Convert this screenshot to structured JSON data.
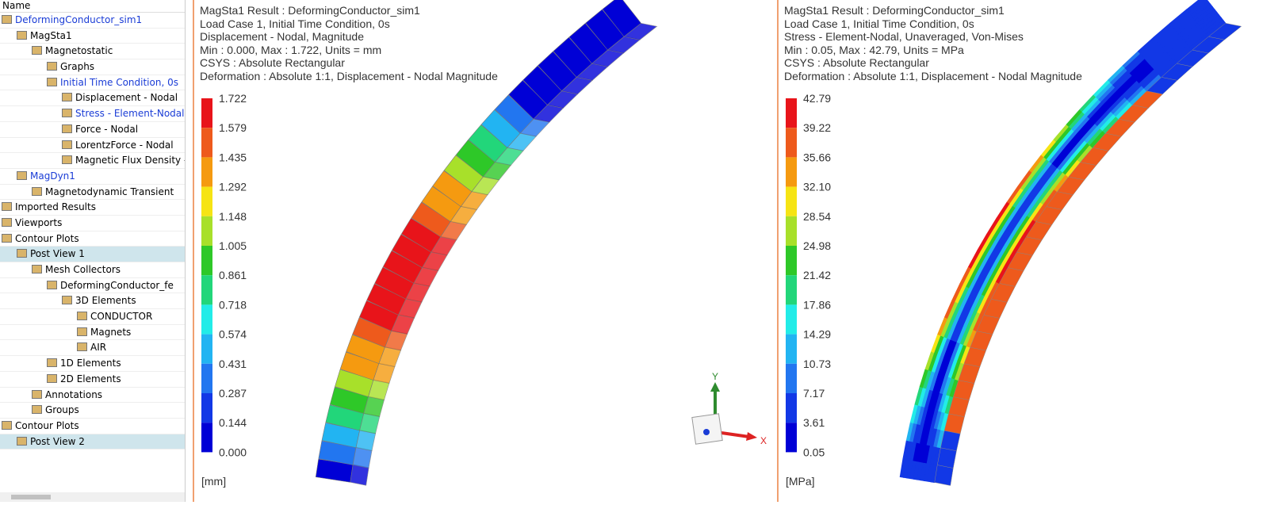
{
  "tree": {
    "header": "Name",
    "items": [
      "DeformingConductor_sim1",
      "MagSta1",
      "Magnetostatic",
      "Graphs",
      "Initial Time Condition, 0s",
      "Displacement - Nodal",
      "Stress - Element-Nodal",
      "Force - Nodal",
      "LorentzForce - Nodal",
      "Magnetic Flux Density - Ele",
      "MagDyn1",
      "Magnetodynamic Transient",
      "Imported Results",
      "Viewports",
      "Contour Plots",
      "Post View 1",
      "Mesh Collectors",
      "DeformingConductor_fe",
      "3D Elements",
      "CONDUCTOR",
      "Magnets",
      "AIR",
      "1D Elements",
      "2D Elements",
      "Annotations",
      "Groups",
      "Contour Plots",
      "Post View 2"
    ]
  },
  "views": [
    {
      "info": [
        "MagSta1 Result : DeformingConductor_sim1",
        "Load Case 1, Initial Time Condition, 0s",
        "Displacement - Nodal, Magnitude",
        "Min : 0.000, Max : 1.722, Units = mm",
        "CSYS : Absolute Rectangular",
        "Deformation : Absolute 1:1, Displacement - Nodal Magnitude"
      ],
      "legend": [
        "1.722",
        "1.579",
        "1.435",
        "1.292",
        "1.148",
        "1.005",
        "0.861",
        "0.718",
        "0.574",
        "0.431",
        "0.287",
        "0.144",
        "0.000"
      ],
      "unit": "[mm]"
    },
    {
      "info": [
        "MagSta1 Result : DeformingConductor_sim1",
        "Load Case 1, Initial Time Condition, 0s",
        "Stress - Element-Nodal, Unaveraged, Von-Mises",
        "Min : 0.05, Max : 42.79, Units = MPa",
        "CSYS : Absolute Rectangular",
        "Deformation : Absolute 1:1, Displacement - Nodal Magnitude"
      ],
      "legend": [
        "42.79",
        "39.22",
        "35.66",
        "32.10",
        "28.54",
        "24.98",
        "21.42",
        "17.86",
        "14.29",
        "10.73",
        "7.17",
        "3.61",
        "0.05"
      ],
      "unit": "[MPa]"
    }
  ],
  "triad": {
    "y": "Y",
    "x": "X"
  }
}
